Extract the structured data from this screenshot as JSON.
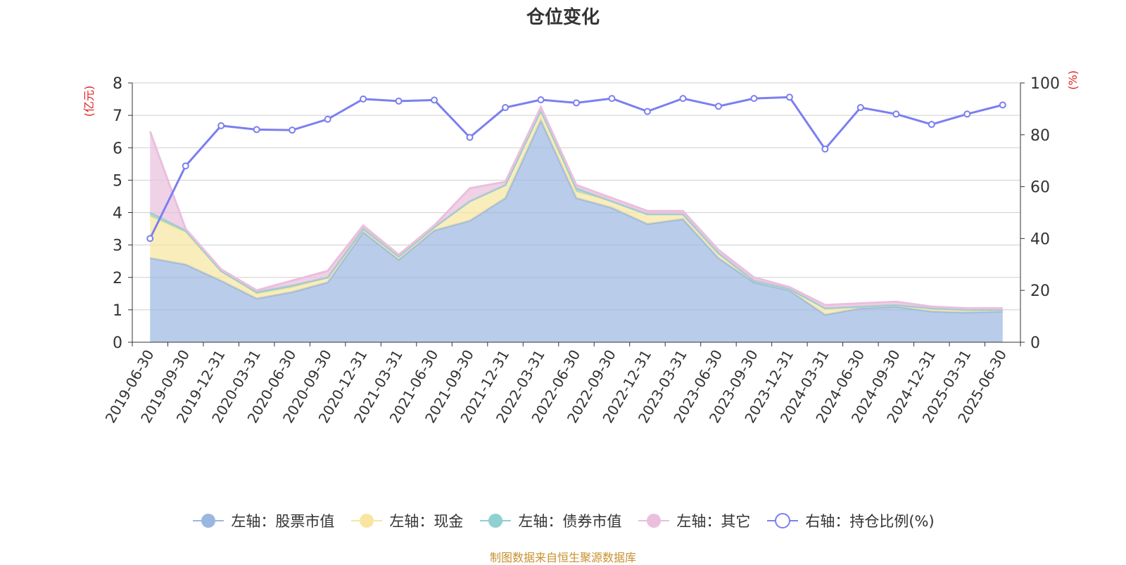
{
  "chart_data": {
    "type": "area",
    "title": "仓位变化",
    "left_axis_unit": "(亿元)",
    "right_axis_unit": "(%)",
    "ylim_left": [
      0,
      8
    ],
    "ylim_right": [
      0,
      100
    ],
    "left_ticks": [
      "0",
      "1",
      "2",
      "3",
      "4",
      "5",
      "6",
      "7",
      "8"
    ],
    "right_ticks": [
      "0",
      "20",
      "40",
      "60",
      "80",
      "100"
    ],
    "grid": true,
    "legend_position": "bottom",
    "categories": [
      "2019-06-30",
      "2019-09-30",
      "2019-12-31",
      "2020-03-31",
      "2020-06-30",
      "2020-09-30",
      "2020-12-31",
      "2021-03-31",
      "2021-06-30",
      "2021-09-30",
      "2021-12-31",
      "2022-03-31",
      "2022-06-30",
      "2022-09-30",
      "2022-12-31",
      "2023-03-31",
      "2023-06-30",
      "2023-09-30",
      "2023-12-31",
      "2024-03-31",
      "2024-06-30",
      "2024-09-30",
      "2024-12-31",
      "2025-03-31",
      "2025-06-30"
    ],
    "series": [
      {
        "name": "左轴：股票市值",
        "axis": "left",
        "type": "stacked-area",
        "color": "#9bb7e0",
        "values": [
          2.6,
          2.4,
          1.9,
          1.35,
          1.55,
          1.85,
          3.4,
          2.55,
          3.45,
          3.75,
          4.45,
          6.85,
          4.45,
          4.15,
          3.65,
          3.8,
          2.6,
          1.85,
          1.6,
          0.85,
          1.05,
          1.1,
          0.95,
          0.92,
          0.95
        ]
      },
      {
        "name": "左轴：现金",
        "axis": "left",
        "type": "stacked-area",
        "color": "#f8e6a0",
        "values": [
          1.3,
          1.0,
          0.3,
          0.15,
          0.15,
          0.15,
          0.1,
          0.1,
          0.1,
          0.6,
          0.4,
          0.3,
          0.2,
          0.2,
          0.3,
          0.15,
          0.15,
          0.05,
          0.05,
          0.2,
          0.05,
          0.05,
          0.1,
          0.08,
          0.05
        ]
      },
      {
        "name": "左轴：债券市值",
        "axis": "left",
        "type": "stacked-area",
        "color": "#8fd0d0",
        "values": [
          0.1,
          0.05,
          0,
          0.05,
          0.05,
          0,
          0,
          0,
          0,
          0,
          0,
          0,
          0.1,
          0,
          0,
          0,
          0,
          0,
          0,
          0,
          0,
          0,
          0,
          0,
          0
        ]
      },
      {
        "name": "左轴：其它",
        "axis": "left",
        "type": "stacked-area",
        "color": "#eabfdd",
        "values": [
          2.5,
          0.05,
          0.05,
          0.05,
          0.15,
          0.2,
          0.1,
          0.05,
          0.05,
          0.4,
          0.1,
          0.1,
          0.1,
          0.1,
          0.1,
          0.1,
          0.1,
          0.1,
          0.05,
          0.1,
          0.1,
          0.1,
          0.05,
          0.05,
          0.05
        ]
      },
      {
        "name": "右轴：持仓比例(%)",
        "axis": "right",
        "type": "line",
        "color": "#7b7ff0",
        "values": [
          40,
          68,
          83.5,
          82,
          81.8,
          86,
          93.8,
          93,
          93.4,
          79,
          90.5,
          93.5,
          92.3,
          94,
          89,
          94,
          91,
          94,
          94.5,
          74.5,
          90.5,
          88,
          84,
          88,
          91.5
        ]
      }
    ]
  },
  "source_text": "制图数据来自恒生聚源数据库"
}
